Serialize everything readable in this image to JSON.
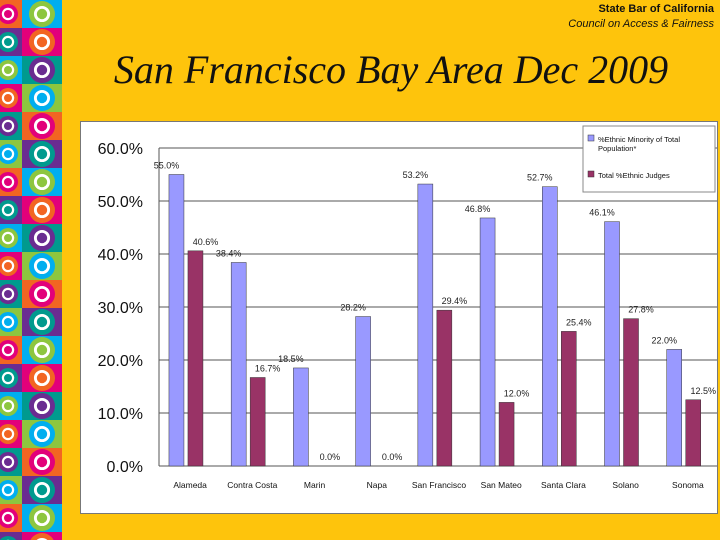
{
  "header": {
    "org": "State Bar of California",
    "council": "Council on Access & Fairness",
    "title": "San Francisco Bay Area Dec 2009"
  },
  "colors": {
    "background": "#fec40c",
    "series_minority": "#9999ff",
    "series_judges": "#993366"
  },
  "chart_data": {
    "type": "bar",
    "categories": [
      "Alameda",
      "Contra Costa",
      "Marin",
      "Napa",
      "San Francisco",
      "San Mateo",
      "Santa Clara",
      "Solano",
      "Sonoma"
    ],
    "series": [
      {
        "name": "%Ethnic Minority of Total Population*",
        "values": [
          55.0,
          38.4,
          18.5,
          28.2,
          53.2,
          46.8,
          52.7,
          46.1,
          22.0
        ],
        "labels": [
          "55.0%",
          "38.4%",
          "18.5%",
          "28.2%",
          "53.2%",
          "46.8%",
          "52.7%",
          "46.1%",
          "22.0%"
        ]
      },
      {
        "name": "Total %Ethnic Judges",
        "values": [
          40.6,
          16.7,
          0.0,
          0.0,
          29.4,
          12.0,
          25.4,
          27.8,
          12.5
        ],
        "labels": [
          "40.6%",
          "16.7%",
          "0.0%",
          "0.0%",
          "29.4%",
          "12.0%",
          "25.4%",
          "27.8%",
          "12.5%"
        ]
      }
    ],
    "ylim": [
      0,
      60
    ],
    "yticks": [
      "0.0%",
      "10.0%",
      "20.0%",
      "30.0%",
      "40.0%",
      "50.0%",
      "60.0%"
    ],
    "grid": true,
    "legend": "top-right"
  }
}
